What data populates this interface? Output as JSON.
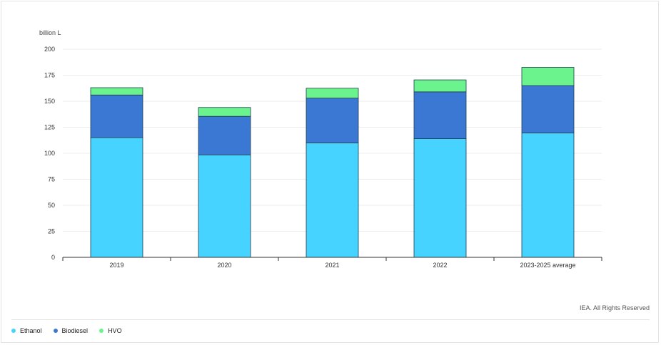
{
  "chart_data": {
    "type": "bar",
    "stacked": true,
    "title": "",
    "xlabel": "",
    "ylabel": "billion L",
    "ylim": [
      0,
      200
    ],
    "yticks": [
      0,
      25,
      50,
      75,
      100,
      125,
      150,
      175,
      200
    ],
    "grid": true,
    "legend_position": "bottom-left",
    "categories": [
      "2019",
      "2020",
      "2021",
      "2022",
      "2023-2025 average"
    ],
    "series": [
      {
        "name": "Ethanol",
        "color": "#47d3ff",
        "values": [
          115,
          98.5,
          110,
          114,
          119.5
        ]
      },
      {
        "name": "Biodiesel",
        "color": "#3b78d4",
        "values": [
          41,
          37,
          43,
          45,
          45.5
        ]
      },
      {
        "name": "HVO",
        "color": "#6bf38e",
        "values": [
          7,
          8.5,
          9.5,
          11.5,
          17.5
        ]
      }
    ],
    "credit": "IEA. All Rights Reserved"
  }
}
